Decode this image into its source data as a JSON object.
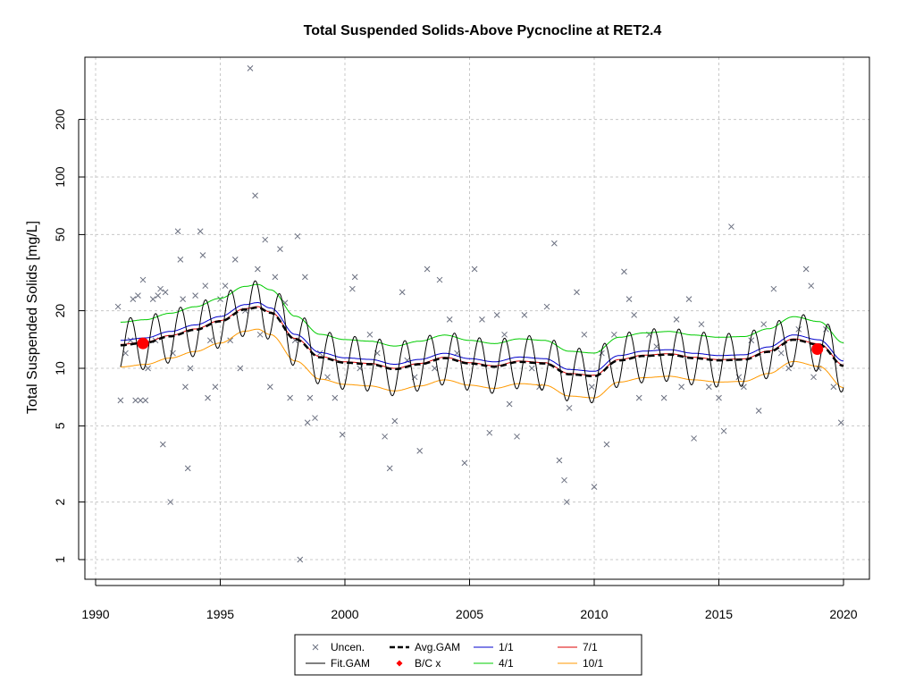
{
  "chart_data": {
    "type": "scatter",
    "title": "Total Suspended Solids-Above Pycnocline at RET2.4",
    "xlabel": "",
    "ylabel": "Total Suspended Solids [mg/L]",
    "xlim": [
      1990,
      2020
    ],
    "ylim": [
      0.85,
      400
    ],
    "y_scale": "log",
    "grid": true,
    "x_ticks": [
      1990,
      1995,
      2000,
      2005,
      2010,
      2015,
      2020
    ],
    "y_ticks": [
      1,
      2,
      5,
      10,
      20,
      50,
      100,
      200
    ],
    "legend_position": "bottom",
    "legend": [
      {
        "label": "Uncen.",
        "symbol": "x",
        "color": "#6B7080"
      },
      {
        "label": "Avg.GAM",
        "symbol": "dashed-line",
        "color": "#000000"
      },
      {
        "label": "1/1",
        "symbol": "line",
        "color": "#0000CC"
      },
      {
        "label": "7/1",
        "symbol": "line",
        "color": "#DD0000"
      },
      {
        "label": "Fit.GAM",
        "symbol": "line",
        "color": "#000000"
      },
      {
        "label": "B/C x",
        "symbol": "dot",
        "color": "#FF0000"
      },
      {
        "label": "4/1",
        "symbol": "line",
        "color": "#00CC00"
      },
      {
        "label": "10/1",
        "symbol": "line",
        "color": "#FF9900"
      }
    ],
    "avg_gam": {
      "x": [
        1991.0,
        1992.0,
        1993.0,
        1994.0,
        1995.0,
        1996.0,
        1996.5,
        1997.0,
        1998.0,
        1999.0,
        2000.0,
        2001.0,
        2002.0,
        2003.0,
        2004.0,
        2005.0,
        2006.0,
        2007.0,
        2008.0,
        2009.0,
        2010.0,
        2011.0,
        2012.0,
        2013.0,
        2014.0,
        2015.0,
        2016.0,
        2017.0,
        2018.0,
        2019.0,
        2020.0
      ],
      "y": [
        13.2,
        13.6,
        14.7,
        15.9,
        17.6,
        20.3,
        20.8,
        19.5,
        14.2,
        11.4,
        10.7,
        10.5,
        9.9,
        10.5,
        11.3,
        10.6,
        10.2,
        10.8,
        10.6,
        9.3,
        9.1,
        11.0,
        11.6,
        11.8,
        11.3,
        11.0,
        11.1,
        12.2,
        14.1,
        13.3,
        10.3
      ]
    },
    "series_offsets": [
      {
        "name": "1/1",
        "factor": 1.06
      },
      {
        "name": "4/1",
        "factor": 1.32
      },
      {
        "name": "7/1",
        "factor": 1.01
      },
      {
        "name": "10/1",
        "factor": 0.77
      }
    ],
    "fit_gam_amplitude": 1.38,
    "bc_points": [
      {
        "x": 1991.9,
        "y": 13.5
      },
      {
        "x": 2018.95,
        "y": 12.6
      }
    ],
    "observations": [
      [
        1990.9,
        21
      ],
      [
        1991.0,
        6.8
      ],
      [
        1991.2,
        12
      ],
      [
        1991.4,
        14
      ],
      [
        1991.5,
        23
      ],
      [
        1991.6,
        6.8
      ],
      [
        1991.7,
        24
      ],
      [
        1991.8,
        6.8
      ],
      [
        1991.9,
        29
      ],
      [
        1992.0,
        6.8
      ],
      [
        1992.1,
        10
      ],
      [
        1992.3,
        23
      ],
      [
        1992.4,
        14
      ],
      [
        1992.5,
        24
      ],
      [
        1992.6,
        26
      ],
      [
        1992.7,
        4
      ],
      [
        1992.8,
        25
      ],
      [
        1993.0,
        2
      ],
      [
        1993.1,
        12
      ],
      [
        1993.3,
        52
      ],
      [
        1993.4,
        37
      ],
      [
        1993.5,
        23
      ],
      [
        1993.6,
        8
      ],
      [
        1993.7,
        3
      ],
      [
        1993.8,
        10
      ],
      [
        1994.0,
        24
      ],
      [
        1994.2,
        52
      ],
      [
        1994.3,
        39
      ],
      [
        1994.4,
        27
      ],
      [
        1994.5,
        7
      ],
      [
        1994.6,
        14
      ],
      [
        1994.8,
        8
      ],
      [
        1995.0,
        23
      ],
      [
        1995.2,
        27
      ],
      [
        1995.4,
        14
      ],
      [
        1995.6,
        37
      ],
      [
        1995.8,
        10
      ],
      [
        1996.0,
        20
      ],
      [
        1996.2,
        370
      ],
      [
        1996.4,
        80
      ],
      [
        1996.5,
        33
      ],
      [
        1996.6,
        15
      ],
      [
        1996.8,
        47
      ],
      [
        1997.0,
        8
      ],
      [
        1997.2,
        30
      ],
      [
        1997.4,
        42
      ],
      [
        1997.6,
        22
      ],
      [
        1997.8,
        7
      ],
      [
        1998.0,
        14
      ],
      [
        1998.1,
        49
      ],
      [
        1998.2,
        1
      ],
      [
        1998.4,
        30
      ],
      [
        1998.5,
        5.2
      ],
      [
        1998.6,
        7
      ],
      [
        1998.8,
        5.5
      ],
      [
        1999.0,
        12
      ],
      [
        1999.3,
        9
      ],
      [
        1999.6,
        7
      ],
      [
        1999.9,
        4.5
      ],
      [
        2000.3,
        26
      ],
      [
        2000.4,
        30
      ],
      [
        2000.6,
        10
      ],
      [
        2001.0,
        15
      ],
      [
        2001.3,
        12
      ],
      [
        2001.6,
        4.4
      ],
      [
        2001.8,
        3
      ],
      [
        2002.0,
        5.3
      ],
      [
        2002.3,
        25
      ],
      [
        2002.5,
        11
      ],
      [
        2002.8,
        9
      ],
      [
        2003.0,
        3.7
      ],
      [
        2003.3,
        33
      ],
      [
        2003.6,
        10
      ],
      [
        2003.8,
        29
      ],
      [
        2004.2,
        18
      ],
      [
        2004.5,
        12
      ],
      [
        2004.8,
        3.2
      ],
      [
        2005.2,
        33
      ],
      [
        2005.5,
        18
      ],
      [
        2005.8,
        4.6
      ],
      [
        2006.1,
        19
      ],
      [
        2006.4,
        15
      ],
      [
        2006.6,
        6.5
      ],
      [
        2006.9,
        4.4
      ],
      [
        2007.2,
        19
      ],
      [
        2007.5,
        10
      ],
      [
        2007.8,
        8
      ],
      [
        2008.1,
        21
      ],
      [
        2008.4,
        45
      ],
      [
        2008.6,
        3.3
      ],
      [
        2008.8,
        2.6
      ],
      [
        2008.9,
        2
      ],
      [
        2009.0,
        6.2
      ],
      [
        2009.3,
        25
      ],
      [
        2009.6,
        15
      ],
      [
        2009.9,
        8
      ],
      [
        2010.0,
        2.4
      ],
      [
        2010.3,
        12
      ],
      [
        2010.5,
        4
      ],
      [
        2010.8,
        15
      ],
      [
        2011.2,
        32
      ],
      [
        2011.4,
        23
      ],
      [
        2011.6,
        19
      ],
      [
        2011.8,
        7
      ],
      [
        2012.2,
        15
      ],
      [
        2012.5,
        13
      ],
      [
        2012.8,
        7
      ],
      [
        2013.3,
        18
      ],
      [
        2013.5,
        8
      ],
      [
        2013.8,
        23
      ],
      [
        2014.0,
        4.3
      ],
      [
        2014.3,
        17
      ],
      [
        2014.6,
        8
      ],
      [
        2015.0,
        7
      ],
      [
        2015.2,
        4.7
      ],
      [
        2015.5,
        55
      ],
      [
        2015.8,
        9
      ],
      [
        2016.0,
        8
      ],
      [
        2016.3,
        14
      ],
      [
        2016.6,
        6
      ],
      [
        2016.8,
        17
      ],
      [
        2017.2,
        26
      ],
      [
        2017.5,
        12
      ],
      [
        2017.8,
        10
      ],
      [
        2018.2,
        16
      ],
      [
        2018.5,
        33
      ],
      [
        2018.7,
        27
      ],
      [
        2018.8,
        9
      ],
      [
        2019.0,
        10
      ],
      [
        2019.3,
        16
      ],
      [
        2019.6,
        8
      ],
      [
        2019.9,
        5.2
      ]
    ]
  }
}
